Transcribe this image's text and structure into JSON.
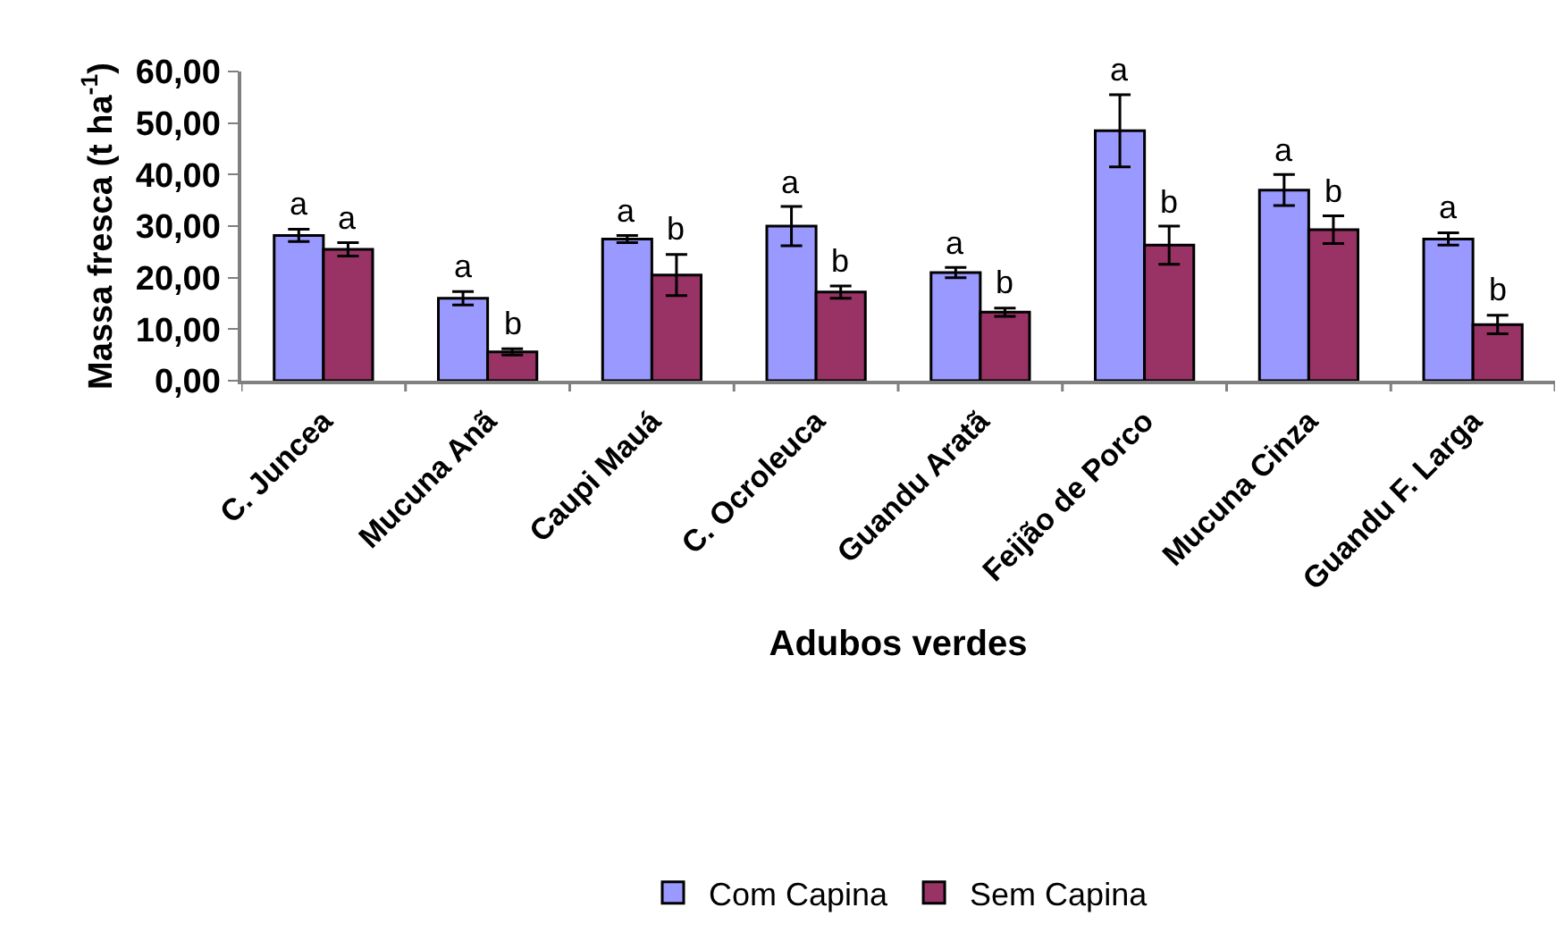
{
  "chart_data": {
    "type": "bar",
    "xlabel": "Adubos verdes",
    "ylabel": "Massa fresca (t ha$^{-1}$)",
    "categories": [
      "C. Juncea",
      "Mucuna Anã",
      "Caupi Mauá",
      "C. Ocroleuca",
      "Guandu Aratã",
      "Feijão de Porco",
      "Mucuna Cinza",
      "Guandu F. Larga"
    ],
    "series": [
      {
        "name": "Com Capina",
        "color": "#9999ff",
        "values": [
          28.2,
          16,
          27.5,
          30,
          21,
          48.5,
          37,
          27.5
        ],
        "errors": [
          1.2,
          1.3,
          0.7,
          3.8,
          1,
          7,
          3,
          1.2
        ],
        "value_labels": [
          "a",
          "a",
          "a",
          "a",
          "a",
          "a",
          "a",
          "a"
        ]
      },
      {
        "name": "Sem Capina",
        "color": "#993366",
        "values": [
          25.5,
          5.6,
          20.5,
          17.2,
          13.3,
          26.3,
          29.3,
          10.9
        ],
        "errors": [
          1.3,
          0.6,
          4,
          1.2,
          0.8,
          3.7,
          2.7,
          1.8
        ],
        "value_labels": [
          "a",
          "b",
          "b",
          "b",
          "b",
          "b",
          "b",
          "b"
        ]
      }
    ],
    "ylim": [
      0,
      60
    ],
    "yticks": [
      {
        "value": 0,
        "label": "0,00"
      },
      {
        "value": 10,
        "label": "10,00"
      },
      {
        "value": 20,
        "label": "20,00"
      },
      {
        "value": 30,
        "label": "30,00"
      },
      {
        "value": 40,
        "label": "40,00"
      },
      {
        "value": 50,
        "label": "50,00"
      },
      {
        "value": 60,
        "label": "60,00"
      }
    ],
    "grid": false,
    "legend": "bottom"
  }
}
